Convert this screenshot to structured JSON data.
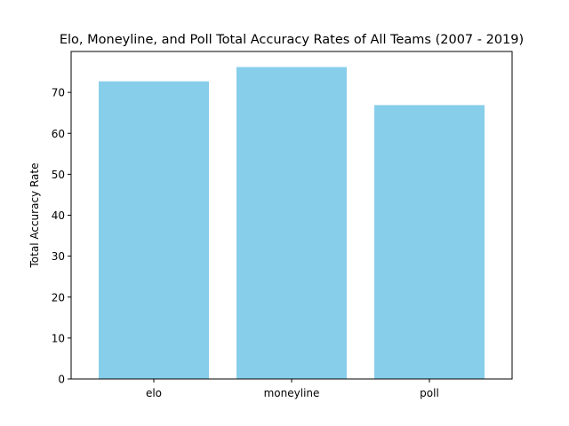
{
  "chart_data": {
    "type": "bar",
    "title": "Elo, Moneyline, and Poll Total Accuracy Rates of All Teams (2007 - 2019)",
    "xlabel": "",
    "ylabel": "Total Accuracy Rate",
    "categories": [
      "elo",
      "moneyline",
      "poll"
    ],
    "values": [
      72.7,
      76.2,
      66.9
    ],
    "ylim": [
      0,
      80
    ],
    "yticks": [
      0,
      10,
      20,
      30,
      40,
      50,
      60,
      70
    ],
    "bar_color": "#87ceeb",
    "grid": false,
    "legend": "none"
  }
}
